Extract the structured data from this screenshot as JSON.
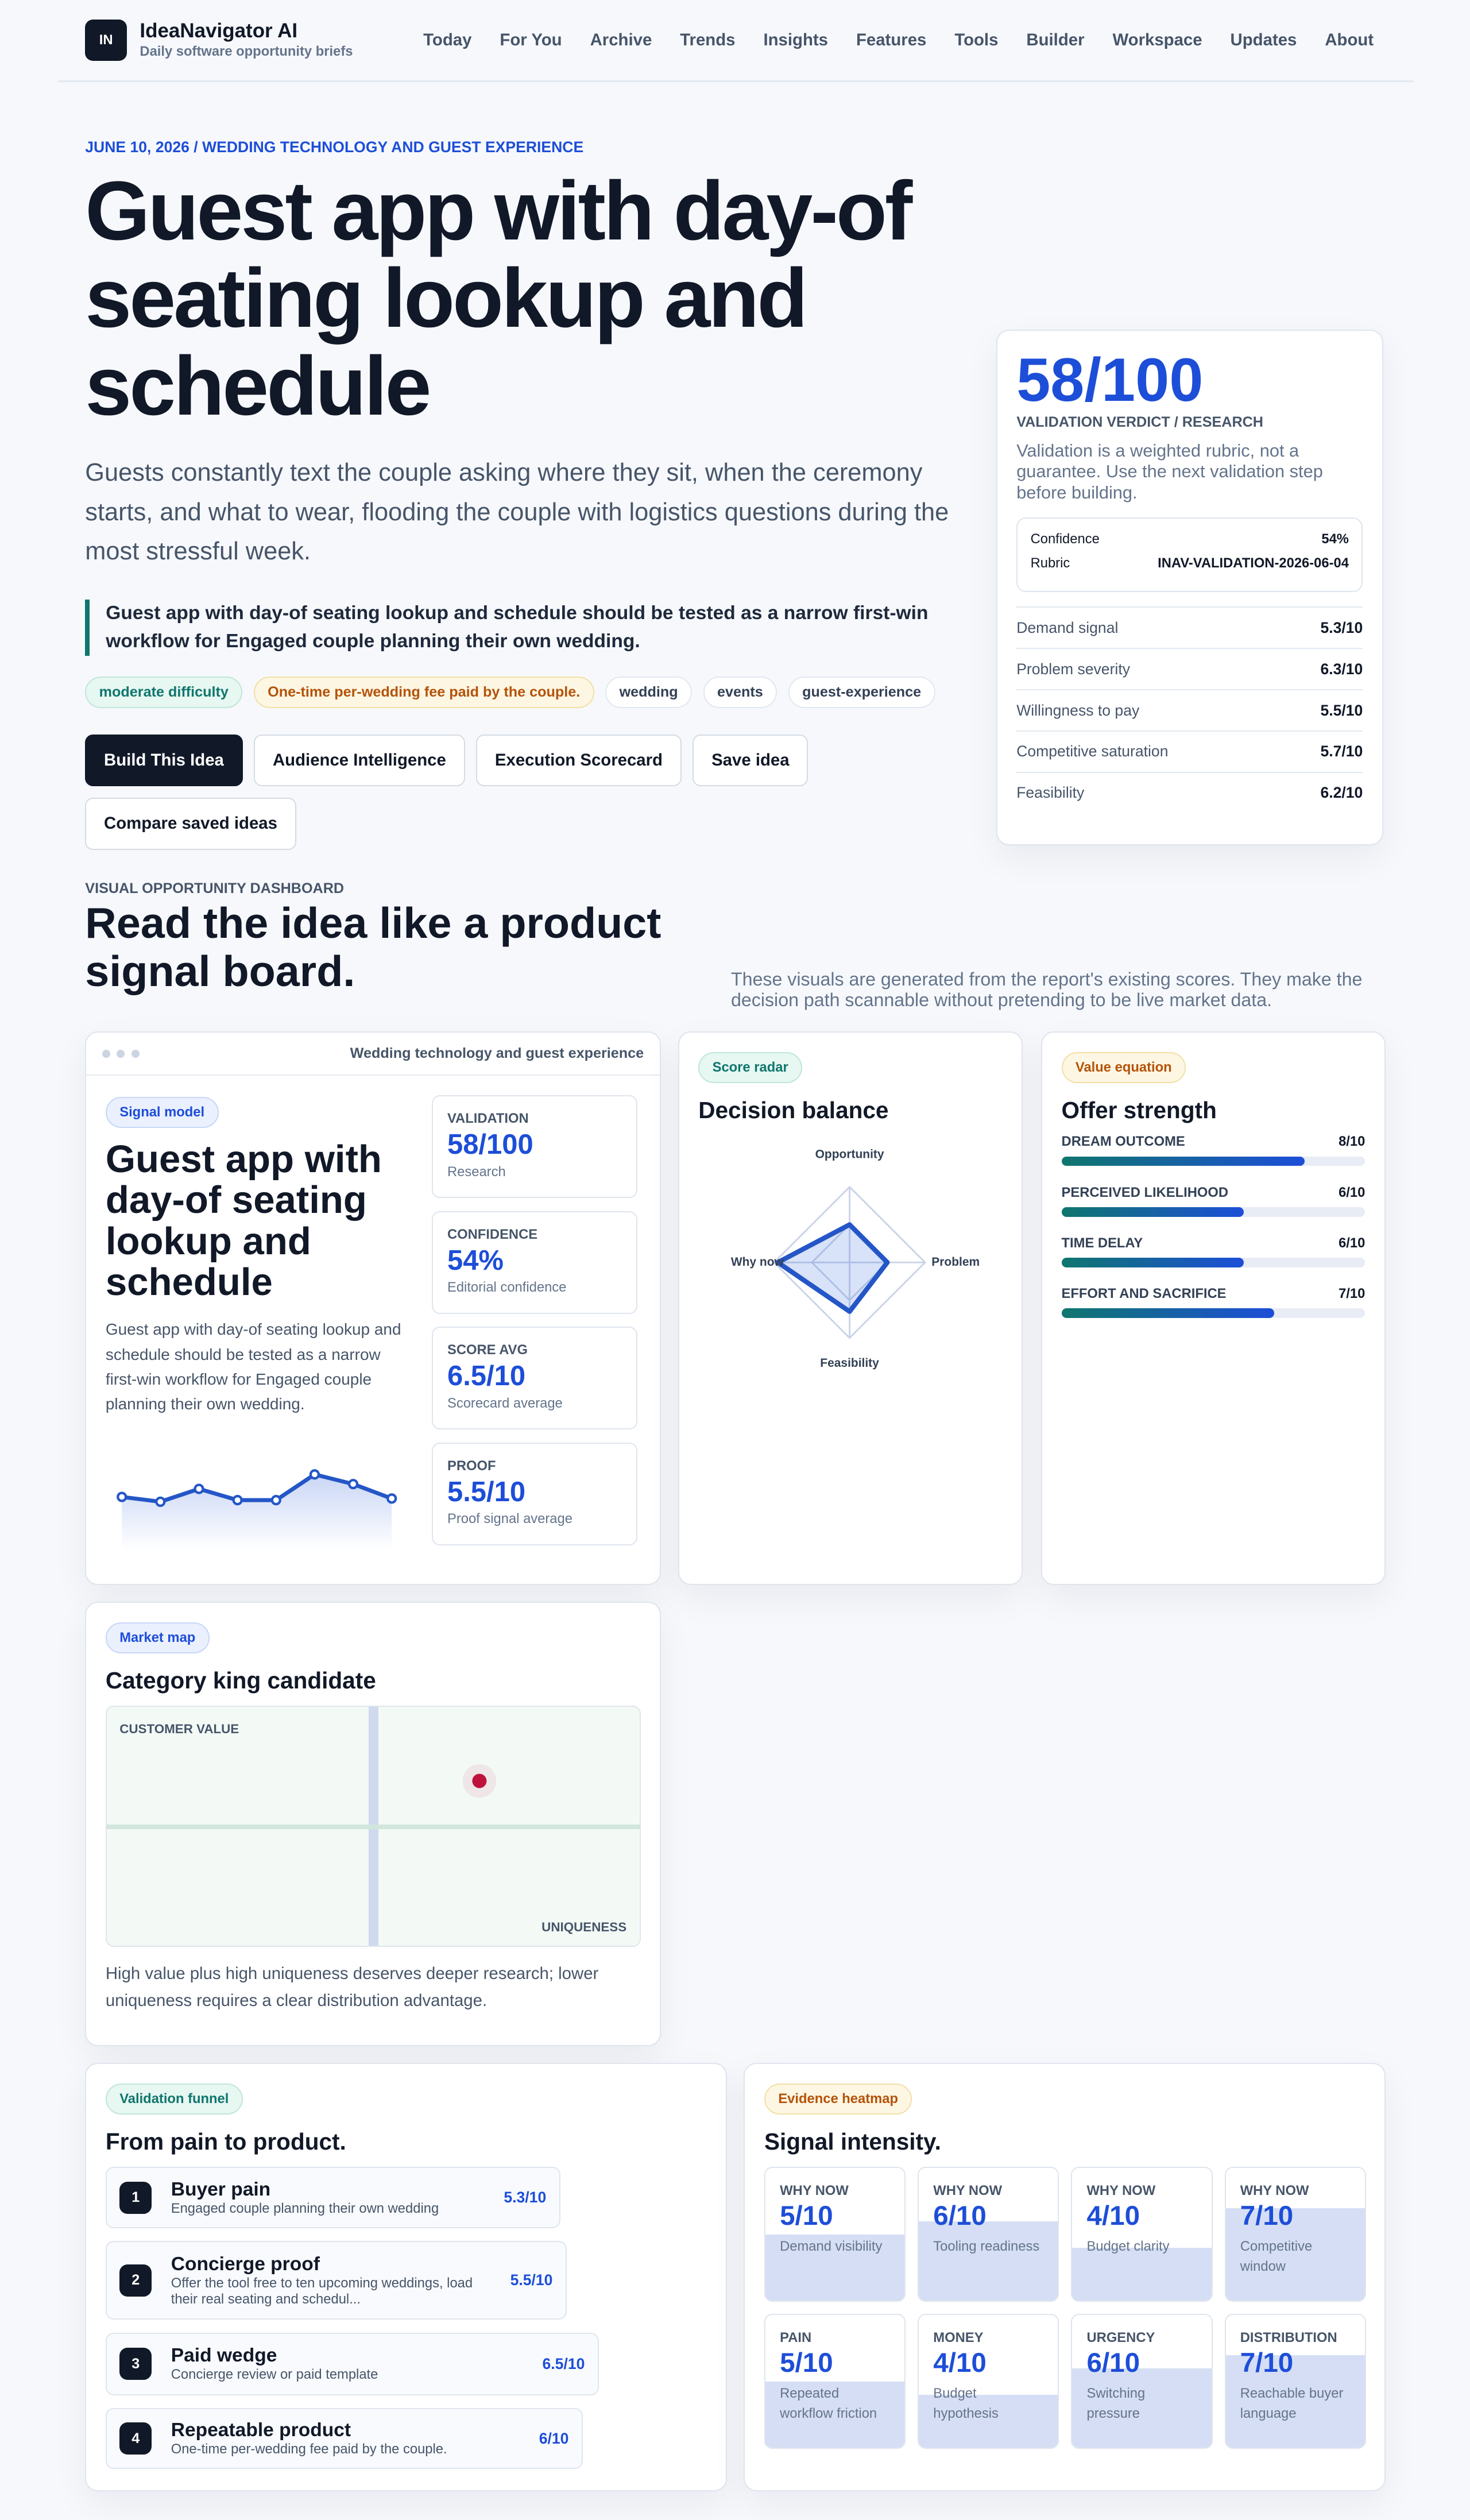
{
  "header": {
    "logo": "IN",
    "brand": "IdeaNavigator AI",
    "tagline": "Daily software opportunity briefs",
    "nav": [
      "Today",
      "For You",
      "Archive",
      "Trends",
      "Insights",
      "Features",
      "Tools",
      "Builder",
      "Workspace",
      "Updates",
      "About"
    ]
  },
  "hero": {
    "eyebrow": "JUNE 10, 2026 / WEDDING TECHNOLOGY AND GUEST EXPERIENCE",
    "title": "Guest app with day-of seating lookup and schedule",
    "lead": "Guests constantly text the couple asking where they sit, when the ceremony starts, and what to wear, flooding the couple with logistics questions during the most stressful week.",
    "callout": "Guest app with day-of seating lookup and schedule should be tested as a narrow first-win workflow for Engaged couple planning their own wedding.",
    "tags": [
      "moderate difficulty",
      "One-time per-wedding fee paid by the couple.",
      "wedding",
      "events",
      "guest-experience"
    ],
    "buttons": [
      "Build This Idea",
      "Audience Intelligence",
      "Execution Scorecard",
      "Save idea",
      "Compare saved ideas"
    ]
  },
  "verdict": {
    "score": "58/100",
    "label": "VALIDATION VERDICT / RESEARCH",
    "note": "Validation is a weighted rubric, not a guarantee. Use the next validation step before building.",
    "meta": [
      {
        "label": "Confidence",
        "value": "54%"
      },
      {
        "label": "Rubric",
        "value": "INAV-VALIDATION-2026-06-04"
      }
    ],
    "scores": [
      {
        "label": "Demand signal",
        "value": "5.3/10"
      },
      {
        "label": "Problem severity",
        "value": "6.3/10"
      },
      {
        "label": "Willingness to pay",
        "value": "5.5/10"
      },
      {
        "label": "Competitive saturation",
        "value": "5.7/10"
      },
      {
        "label": "Feasibility",
        "value": "6.2/10"
      }
    ]
  },
  "dashboard": {
    "eyebrow": "VISUAL OPPORTUNITY DASHBOARD",
    "title": "Read the idea like a product signal board.",
    "note": "These visuals are generated from the report's existing scores. They make the decision path scannable without pretending to be live market data."
  },
  "signal_card": {
    "window_title": "Wedding technology and guest experience",
    "badge": "Signal model",
    "title": "Guest app with day-of seating lookup and schedule",
    "body": "Guest app with day-of seating lookup and schedule should be tested as a narrow first-win workflow for Engaged couple planning their own wedding.",
    "stats": [
      {
        "label": "VALIDATION",
        "value": "58/100",
        "caption": "Research"
      },
      {
        "label": "CONFIDENCE",
        "value": "54%",
        "caption": "Editorial confidence"
      },
      {
        "label": "SCORE AVG",
        "value": "6.5/10",
        "caption": "Scorecard average"
      },
      {
        "label": "PROOF",
        "value": "5.5/10",
        "caption": "Proof signal average"
      }
    ]
  },
  "radar": {
    "badge": "Score radar",
    "title": "Decision balance",
    "axes": [
      "Opportunity",
      "Problem",
      "Feasibility",
      "Why now"
    ],
    "values": [
      5,
      5,
      6.5,
      9.5
    ],
    "rlim": [
      0,
      10
    ]
  },
  "value_equation": {
    "badge": "Value equation",
    "title": "Offer strength",
    "items": [
      {
        "label": "DREAM OUTCOME",
        "value": "8/10"
      },
      {
        "label": "PERCEIVED LIKELIHOOD",
        "value": "6/10"
      },
      {
        "label": "TIME DELAY",
        "value": "6/10"
      },
      {
        "label": "EFFORT AND SACRIFICE",
        "value": "7/10"
      }
    ]
  },
  "market_map": {
    "badge": "Market map",
    "title": "Category king candidate",
    "y_label": "CUSTOMER VALUE",
    "x_label": "UNIQUENESS",
    "point": {
      "x": 70,
      "y": 69
    },
    "xlim": [
      0,
      100
    ],
    "ylim": [
      0,
      100
    ],
    "caption": "High value plus high uniqueness deserves deeper research; lower uniqueness requires a clear distribution advantage."
  },
  "funnel": {
    "badge": "Validation funnel",
    "title": "From pain to product.",
    "steps": [
      {
        "number": "1",
        "title": "Buyer pain",
        "detail": "Engaged couple planning their own wedding",
        "score": "5.3/10"
      },
      {
        "number": "2",
        "title": "Concierge proof",
        "detail": "Offer the tool free to ten upcoming weddings, load their real seating and schedul...",
        "score": "5.5/10"
      },
      {
        "number": "3",
        "title": "Paid wedge",
        "detail": "Concierge review or paid template",
        "score": "6.5/10"
      },
      {
        "number": "4",
        "title": "Repeatable product",
        "detail": "One-time per-wedding fee paid by the couple.",
        "score": "6/10"
      }
    ]
  },
  "heatmap": {
    "badge": "Evidence heatmap",
    "title": "Signal intensity.",
    "cells": [
      {
        "label": "WHY NOW",
        "value": "5/10",
        "caption": "Demand visibility"
      },
      {
        "label": "WHY NOW",
        "value": "6/10",
        "caption": "Tooling readiness"
      },
      {
        "label": "WHY NOW",
        "value": "4/10",
        "caption": "Budget clarity"
      },
      {
        "label": "WHY NOW",
        "value": "7/10",
        "caption": "Competitive window"
      },
      {
        "label": "PAIN",
        "value": "5/10",
        "caption": "Repeated workflow friction"
      },
      {
        "label": "MONEY",
        "value": "4/10",
        "caption": "Budget hypothesis"
      },
      {
        "label": "URGENCY",
        "value": "6/10",
        "caption": "Switching pressure"
      },
      {
        "label": "DISTRIBUTION",
        "value": "7/10",
        "caption": "Reachable buyer language"
      }
    ]
  }
}
